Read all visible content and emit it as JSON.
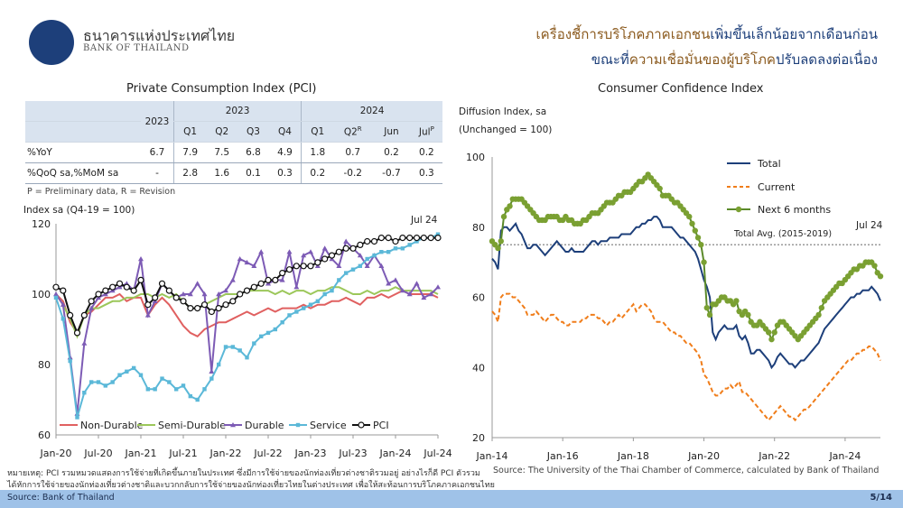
{
  "header": {
    "org_thai": "ธนาคารแห่งประเทศไทย",
    "org_en": "BANK OF THAILAND",
    "headline1_part1": "เครื่องชี้การบริโภคภาคเอกชน",
    "headline1_part2": "เพิ่มขึ้นเล็กน้อยจากเดือนก่อน",
    "headline2_part1": "ขณะที่",
    "headline2_part2": "ความเชื่อมั่นของผู้บริโภค",
    "headline2_part3": "ปรับลดลงต่อเนื่อง"
  },
  "left_panel": {
    "title": "Private Consumption Index (PCI)",
    "table": {
      "col_2023_annual": "2023",
      "group_2023": "2023",
      "group_2024": "2024",
      "subcols": [
        "Q1",
        "Q2",
        "Q3",
        "Q4",
        "Q1",
        "Q2",
        "Jun",
        "Jul"
      ],
      "q2_sup": "R",
      "jul_sup": "P",
      "rows": [
        {
          "label": "%YoY",
          "values": [
            "6.7",
            "7.9",
            "7.5",
            "6.8",
            "4.9",
            "1.8",
            "0.7",
            "0.2",
            "0.2"
          ]
        },
        {
          "label": "%QoQ sa,%MoM sa",
          "values": [
            "-",
            "2.8",
            "1.6",
            "0.1",
            "0.3",
            "0.2",
            "-0.2",
            "-0.7",
            "0.3"
          ]
        }
      ]
    },
    "note": "P = Preliminary data, R = Revision",
    "chart_ylabel": "Index sa (Q4-19 = 100)",
    "latest_label": "Jul 24"
  },
  "right_panel": {
    "title": "Consumer Confidence Index",
    "ylabel1": "Diffusion Index, sa",
    "ylabel2": "(Unchanged = 100)",
    "avg_label": "Total Avg. (2015-2019)",
    "latest_label": "Jul 24",
    "source": "Source:  The University of the Thai Chamber of Commerce, calculated by Bank of Thailand"
  },
  "bottom_note_1": "หมายเหตุ: PCI รวมหมวดแสดงการใช้จ่ายที่เกิดขึ้นภายในประเทศ ซึ่งมีการใช้จ่ายของนักท่องเที่ยวต่างชาติรวมอยู่ อย่างไรก็ดี PCI ตัวรวม",
  "bottom_note_2": "ได้หักการใช้จ่ายของนักท่องเที่ยวต่างชาติและบวกกลับการใช้จ่ายของนักท่องเที่ยวไทยในต่างประเทศ เพื่อให้สะท้อนการบริโภคภาคเอกชนไทย",
  "footer": {
    "source": "Source: Bank of Thailand",
    "page": "5/14"
  },
  "colors": {
    "navy": "#1d3f7a",
    "orange": "#f07d1a",
    "green": "#5b8a2a",
    "green_marker": "#7aa032",
    "red": "#e06060",
    "lime": "#9cc75a",
    "purple": "#7d5bb5",
    "teal": "#5bb8d8",
    "black": "#111111",
    "header_brown": "#8b5a1e",
    "table_header": "#d9e3ef",
    "footer_bar": "#9fc2e8"
  },
  "chart_data": [
    {
      "type": "line",
      "title": "",
      "ylabel": "Index sa (Q4-19 = 100)",
      "ylim": [
        60,
        120
      ],
      "yticks": [
        60,
        80,
        100,
        120
      ],
      "xticks": [
        "Jan-20",
        "Jul-20",
        "Jan-21",
        "Jul-21",
        "Jan-22",
        "Jul-22",
        "Jan-23",
        "Jul-23",
        "Jan-24",
        "Jul-24"
      ],
      "legend_position": "bottom",
      "series": [
        {
          "name": "Non-Durable",
          "color": "#e06060",
          "marker": "none",
          "values": [
            100,
            98,
            92,
            89,
            94,
            95,
            97,
            99,
            99,
            100,
            98,
            99,
            99,
            94,
            97,
            99,
            97,
            94,
            91,
            89,
            88,
            90,
            91,
            92,
            92,
            93,
            94,
            95,
            94,
            95,
            96,
            95,
            96,
            96,
            96,
            97,
            96,
            97,
            97,
            98,
            98,
            99,
            98,
            97,
            99,
            99,
            100,
            99,
            100,
            101,
            100,
            100,
            100,
            100,
            99
          ]
        },
        {
          "name": "Semi-Durable",
          "color": "#9cc75a",
          "marker": "none",
          "values": [
            100,
            97,
            93,
            88,
            94,
            96,
            96,
            97,
            98,
            98,
            99,
            99,
            100,
            100,
            99,
            100,
            99,
            100,
            98,
            96,
            96,
            97,
            98,
            99,
            100,
            100,
            100,
            101,
            101,
            101,
            101,
            100,
            101,
            100,
            101,
            101,
            100,
            101,
            101,
            102,
            102,
            101,
            100,
            100,
            101,
            100,
            101,
            101,
            102,
            101,
            101,
            101,
            101,
            101,
            100
          ]
        },
        {
          "name": "Durable",
          "color": "#7d5bb5",
          "marker": "triangle",
          "values": [
            100,
            97,
            82,
            66,
            86,
            96,
            99,
            100,
            101,
            102,
            103,
            101,
            110,
            94,
            98,
            103,
            101,
            99,
            100,
            100,
            103,
            100,
            78,
            100,
            101,
            104,
            110,
            109,
            108,
            112,
            103,
            104,
            104,
            112,
            102,
            111,
            112,
            108,
            113,
            110,
            108,
            115,
            113,
            111,
            108,
            111,
            108,
            103,
            104,
            101,
            100,
            103,
            99,
            100,
            102
          ]
        },
        {
          "name": "Service",
          "color": "#5bb8d8",
          "marker": "square",
          "values": [
            99,
            93,
            81,
            65,
            72,
            75,
            75,
            74,
            75,
            77,
            78,
            79,
            77,
            73,
            73,
            76,
            75,
            73,
            74,
            71,
            70,
            73,
            76,
            80,
            85,
            85,
            84,
            82,
            86,
            88,
            89,
            90,
            92,
            94,
            95,
            96,
            97,
            98,
            100,
            101,
            104,
            106,
            107,
            108,
            110,
            111,
            112,
            112,
            113,
            113,
            114,
            115,
            116,
            116,
            117
          ]
        },
        {
          "name": "PCI",
          "color": "#111111",
          "marker": "circle",
          "values": [
            102,
            101,
            94,
            89,
            94,
            98,
            100,
            101,
            102,
            103,
            102,
            101,
            104,
            97,
            99,
            103,
            101,
            99,
            98,
            96,
            96,
            97,
            95,
            96,
            97,
            98,
            100,
            101,
            102,
            103,
            104,
            104,
            106,
            107,
            108,
            108,
            108,
            109,
            110,
            111,
            112,
            113,
            113,
            114,
            115,
            115,
            116,
            116,
            115,
            116,
            116,
            116,
            116,
            116,
            116
          ]
        }
      ]
    },
    {
      "type": "line",
      "title": "Consumer Confidence Index",
      "ylabel": "Diffusion Index, sa (Unchanged = 100)",
      "ylim": [
        20,
        100
      ],
      "yticks": [
        20,
        40,
        60,
        80,
        100
      ],
      "xticks": [
        "Jan-14",
        "Jan-16",
        "Jan-18",
        "Jan-20",
        "Jan-22",
        "Jan-24"
      ],
      "legend_position": "top-right",
      "reference_line": {
        "name": "Total Avg. (2015-2019)",
        "value": 75
      },
      "series": [
        {
          "name": "Total",
          "color": "#1d3f7a",
          "marker": "none",
          "values": [
            71,
            70,
            68,
            79,
            80,
            80,
            79,
            80,
            81,
            79,
            78,
            76,
            74,
            74,
            75,
            75,
            74,
            73,
            72,
            73,
            74,
            75,
            76,
            75,
            74,
            73,
            73,
            74,
            73,
            73,
            73,
            73,
            74,
            75,
            76,
            76,
            75,
            76,
            76,
            76,
            77,
            77,
            77,
            77,
            78,
            78,
            78,
            78,
            79,
            80,
            80,
            81,
            81,
            82,
            82,
            83,
            83,
            82,
            80,
            80,
            80,
            80,
            79,
            78,
            77,
            77,
            76,
            75,
            74,
            73,
            71,
            68,
            65,
            63,
            60,
            50,
            48,
            50,
            51,
            52,
            51,
            51,
            51,
            52,
            49,
            48,
            49,
            47,
            44,
            44,
            45,
            45,
            44,
            43,
            42,
            40,
            41,
            43,
            44,
            43,
            42,
            41,
            41,
            40,
            41,
            42,
            42,
            43,
            44,
            45,
            46,
            47,
            49,
            51,
            52,
            53,
            54,
            55,
            56,
            57,
            58,
            59,
            60,
            60,
            61,
            61,
            62,
            62,
            62,
            63,
            62,
            61,
            59
          ]
        },
        {
          "name": "Current",
          "color": "#f07d1a",
          "marker": "none",
          "values": [
            56,
            55,
            53,
            60,
            61,
            61,
            61,
            60,
            60,
            59,
            58,
            57,
            55,
            55,
            55,
            56,
            55,
            54,
            53,
            54,
            55,
            55,
            54,
            53,
            53,
            52,
            52,
            53,
            53,
            53,
            53,
            54,
            54,
            55,
            55,
            55,
            54,
            54,
            53,
            52,
            53,
            53,
            54,
            55,
            54,
            55,
            56,
            57,
            58,
            56,
            57,
            58,
            58,
            57,
            56,
            54,
            53,
            53,
            53,
            52,
            51,
            50,
            50,
            49,
            49,
            48,
            47,
            47,
            46,
            45,
            44,
            42,
            38,
            37,
            35,
            33,
            32,
            32,
            33,
            34,
            34,
            35,
            34,
            35,
            36,
            33,
            33,
            32,
            31,
            30,
            29,
            28,
            27,
            26,
            25,
            26,
            27,
            28,
            29,
            28,
            27,
            26,
            26,
            25,
            26,
            27,
            28,
            28,
            29,
            30,
            31,
            32,
            33,
            34,
            35,
            36,
            37,
            38,
            39,
            40,
            41,
            42,
            42,
            43,
            44,
            44,
            45,
            45,
            46,
            46,
            45,
            44,
            42
          ]
        },
        {
          "name": "Next 6 months",
          "color": "#5b8a2a",
          "marker": "circle",
          "values": [
            76,
            75,
            74,
            76,
            83,
            85,
            86,
            88,
            88,
            88,
            88,
            87,
            86,
            85,
            84,
            83,
            82,
            82,
            82,
            83,
            83,
            83,
            83,
            82,
            82,
            83,
            82,
            82,
            81,
            81,
            81,
            82,
            82,
            83,
            84,
            84,
            84,
            85,
            86,
            87,
            87,
            87,
            88,
            89,
            89,
            90,
            90,
            90,
            91,
            92,
            93,
            93,
            94,
            95,
            94,
            93,
            92,
            91,
            89,
            89,
            89,
            88,
            87,
            87,
            86,
            85,
            84,
            83,
            81,
            79,
            77,
            75,
            70,
            57,
            55,
            58,
            58,
            59,
            60,
            60,
            59,
            59,
            58,
            59,
            56,
            55,
            56,
            55,
            53,
            52,
            52,
            53,
            52,
            51,
            50,
            48,
            50,
            52,
            53,
            53,
            52,
            51,
            50,
            49,
            48,
            49,
            50,
            51,
            52,
            53,
            54,
            55,
            57,
            59,
            60,
            61,
            62,
            63,
            64,
            64,
            65,
            66,
            67,
            68,
            68,
            69,
            69,
            70,
            70,
            70,
            69,
            67,
            66
          ]
        }
      ]
    }
  ]
}
